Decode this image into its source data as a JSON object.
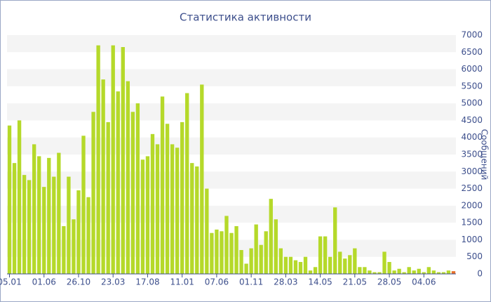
{
  "chart_data": {
    "type": "bar",
    "title": "Статистика активности",
    "y_label": "Сообщений",
    "categories": [
      "05.01",
      null,
      null,
      null,
      null,
      null,
      null,
      "01.06",
      null,
      null,
      null,
      null,
      null,
      null,
      "26.10",
      null,
      null,
      null,
      null,
      null,
      null,
      "23.03",
      null,
      null,
      null,
      null,
      null,
      null,
      "17.08",
      null,
      null,
      null,
      null,
      null,
      null,
      "11.01",
      null,
      null,
      null,
      null,
      null,
      null,
      "07.06",
      null,
      null,
      null,
      null,
      null,
      null,
      "01.11",
      null,
      null,
      null,
      null,
      null,
      null,
      "28.03",
      null,
      null,
      null,
      null,
      null,
      null,
      "14.05",
      null,
      null,
      null,
      null,
      null,
      null,
      "21.05",
      null,
      null,
      null,
      null,
      null,
      null,
      "28.05",
      null,
      null,
      null,
      null,
      null,
      null,
      "04.06",
      null,
      null,
      null,
      null,
      null,
      null
    ],
    "values": [
      4350,
      3250,
      4500,
      2900,
      2750,
      3800,
      3450,
      2550,
      3400,
      2850,
      3550,
      1400,
      2850,
      1600,
      2450,
      4050,
      2250,
      4750,
      6700,
      5700,
      4450,
      6700,
      5350,
      6650,
      5650,
      4750,
      5000,
      3350,
      3450,
      4100,
      3800,
      5200,
      4400,
      3800,
      3700,
      4450,
      5300,
      3250,
      3150,
      5550,
      2500,
      1200,
      1300,
      1250,
      1700,
      1200,
      1400,
      700,
      300,
      750,
      1450,
      850,
      1250,
      2200,
      1600,
      750,
      500,
      500,
      400,
      350,
      500,
      100,
      200,
      1100,
      1100,
      500,
      1950,
      650,
      450,
      550,
      750,
      200,
      200,
      100,
      50,
      50,
      650,
      350,
      100,
      150,
      50,
      200,
      100,
      150,
      50,
      200,
      100,
      50,
      50,
      100,
      80
    ],
    "color": "#b5d92a",
    "last_color": "#e8702a",
    "ylim": [
      0,
      7000
    ],
    "yticks": [
      0,
      500,
      1000,
      1500,
      2000,
      2500,
      3000,
      3500,
      4000,
      4500,
      5000,
      5500,
      6000,
      6500,
      7000
    ],
    "grid": true
  }
}
